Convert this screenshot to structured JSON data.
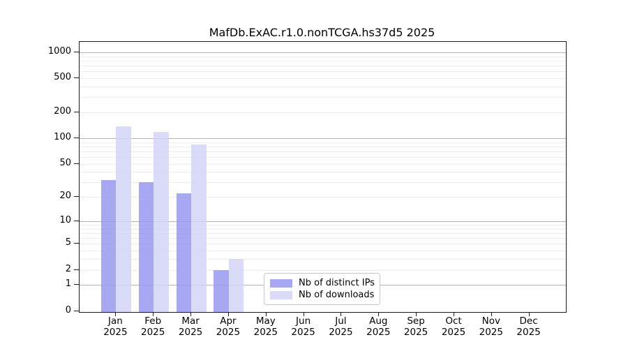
{
  "title": "MafDb.ExAC.r1.0.nonTCGA.hs37d5 2025",
  "chart_data": {
    "type": "bar",
    "title": "MafDb.ExAC.r1.0.nonTCGA.hs37d5 2025",
    "categories": [
      "Jan 2025",
      "Feb 2025",
      "Mar 2025",
      "Apr 2025",
      "May 2025",
      "Jun 2025",
      "Jul 2025",
      "Aug 2025",
      "Sep 2025",
      "Oct 2025",
      "Nov 2025",
      "Dec 2025"
    ],
    "series": [
      {
        "name": "Nb of distinct IPs",
        "color": "#9898f0",
        "values": [
          32,
          30,
          22,
          2,
          0,
          0,
          0,
          0,
          0,
          0,
          0,
          0
        ]
      },
      {
        "name": "Nb of downloads",
        "color": "#d3d3f8",
        "values": [
          137,
          119,
          85,
          3,
          0,
          0,
          0,
          0,
          0,
          0,
          0,
          0
        ]
      }
    ],
    "y_scale": "log10(1+x)",
    "y_ticks": [
      0,
      1,
      2,
      5,
      10,
      20,
      50,
      100,
      200,
      500,
      1000
    ],
    "y_minor_gridlines": [
      3,
      4,
      6,
      7,
      8,
      9,
      30,
      40,
      60,
      70,
      80,
      90,
      300,
      400,
      600,
      700,
      800,
      900
    ],
    "ylim": [
      0,
      1320
    ],
    "xlabel": "",
    "ylabel": "",
    "grid": "on",
    "legend_position": "inside-bottom-center"
  },
  "colors": {
    "major_gridline": "#b3b3b3",
    "minor_gridline": "#ececec",
    "spine": "#1a1a1a"
  }
}
